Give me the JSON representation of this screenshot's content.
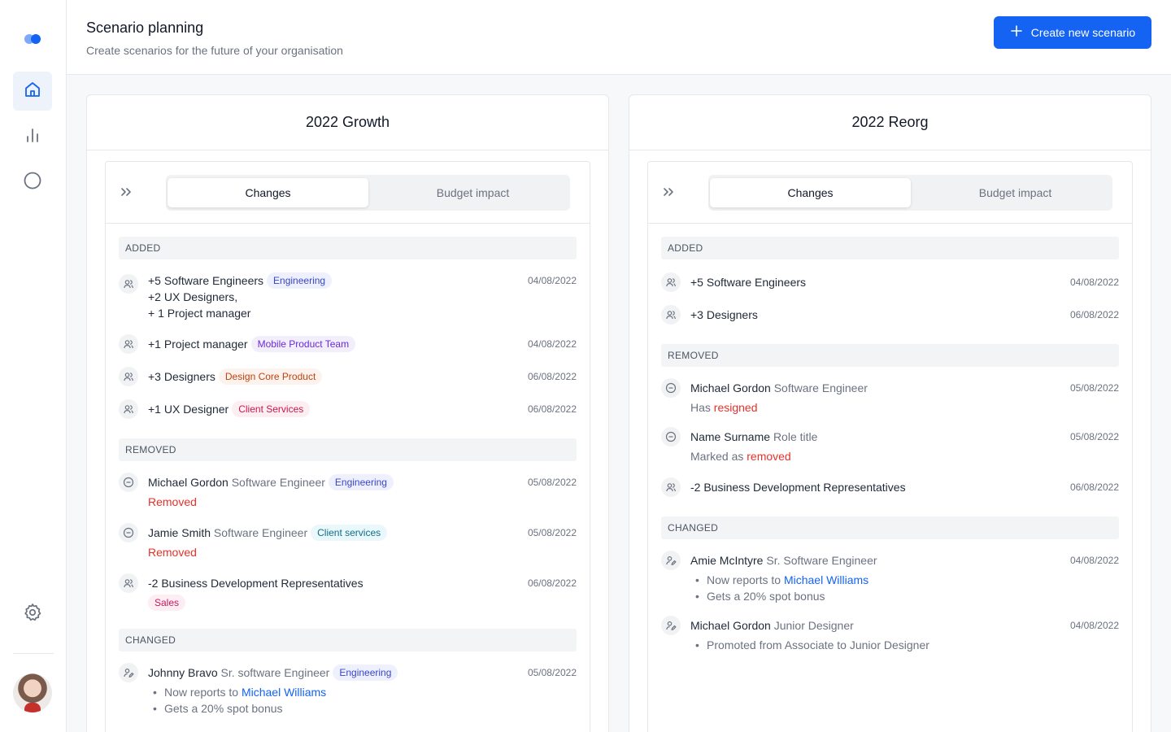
{
  "header": {
    "title": "Scenario planning",
    "subtitle": "Create scenarios for the future of your organisation",
    "create_label": "Create new scenario"
  },
  "sidebar": {
    "items": [
      {
        "name": "home",
        "icon": "home-icon",
        "active": true
      },
      {
        "name": "charts",
        "icon": "bar-chart-icon",
        "active": false
      },
      {
        "name": "circle",
        "icon": "circle-icon",
        "active": false
      },
      {
        "name": "settings",
        "icon": "gear-icon",
        "active": false
      }
    ]
  },
  "tabs": {
    "changes": "Changes",
    "budget": "Budget impact"
  },
  "colors": {
    "accent": "#1463f3",
    "removed": "#e5312b"
  },
  "scenarios": [
    {
      "title": "2022 Growth",
      "added_header": "ADDED",
      "added": [
        {
          "lines": [
            "+5 Software Engineers",
            "+2 UX Designers,",
            "+ 1 Project manager"
          ],
          "tag": "Engineering",
          "date": "04/08/2022"
        },
        {
          "text": "+1 Project manager",
          "tag": "Mobile Product Team",
          "date": "04/08/2022"
        },
        {
          "text": "+3 Designers",
          "tag": "Design Core Product",
          "date": "06/08/2022"
        },
        {
          "text": "+1 UX Designer",
          "tag": "Client Services",
          "date": "06/08/2022"
        }
      ],
      "removed_header": "REMOVED",
      "removed": [
        {
          "name": "Michael Gordon",
          "role": "Software Engineer",
          "tag": "Engineering",
          "status": "Removed",
          "date": "05/08/2022"
        },
        {
          "name": "Jamie Smith",
          "role": "Software Engineer",
          "tag": "Client services",
          "status": "Removed",
          "date": "05/08/2022"
        },
        {
          "text": "-2 Business Development Representatives",
          "tag": "Sales",
          "date": "06/08/2022"
        }
      ],
      "changed_header": "CHANGED",
      "changed": [
        {
          "name": "Johnny Bravo",
          "role": "Sr. software Engineer",
          "tag": "Engineering",
          "date": "05/08/2022",
          "b1_prefix": "Now reports to",
          "b1_link": "Michael Williams",
          "b2": "Gets a 20% spot bonus"
        }
      ]
    },
    {
      "title": "2022 Reorg",
      "added_header": "ADDED",
      "added": [
        {
          "text": "+5 Software Engineers",
          "date": "04/08/2022"
        },
        {
          "text": "+3 Designers",
          "date": "06/08/2022"
        }
      ],
      "removed_header": "REMOVED",
      "removed": [
        {
          "name": "Michael Gordon",
          "role": "Software Engineer",
          "prefix": "Has",
          "status": "resigned",
          "date": "05/08/2022"
        },
        {
          "name": "Name Surname",
          "role": "Role title",
          "prefix": "Marked as",
          "status": "removed",
          "date": "05/08/2022"
        },
        {
          "text": "-2 Business Development Representatives",
          "date": "06/08/2022"
        }
      ],
      "changed_header": "CHANGED",
      "changed": [
        {
          "name": "Amie McIntyre",
          "role": "Sr. Software Engineer",
          "date": "04/08/2022",
          "b1_prefix": "Now reports to",
          "b1_link": "Michael Williams",
          "b2": "Gets a 20% spot bonus"
        },
        {
          "name": "Michael Gordon",
          "role": "Junior Designer",
          "date": "04/08/2022",
          "b1": "Promoted from Associate to Junior Designer"
        }
      ]
    }
  ]
}
